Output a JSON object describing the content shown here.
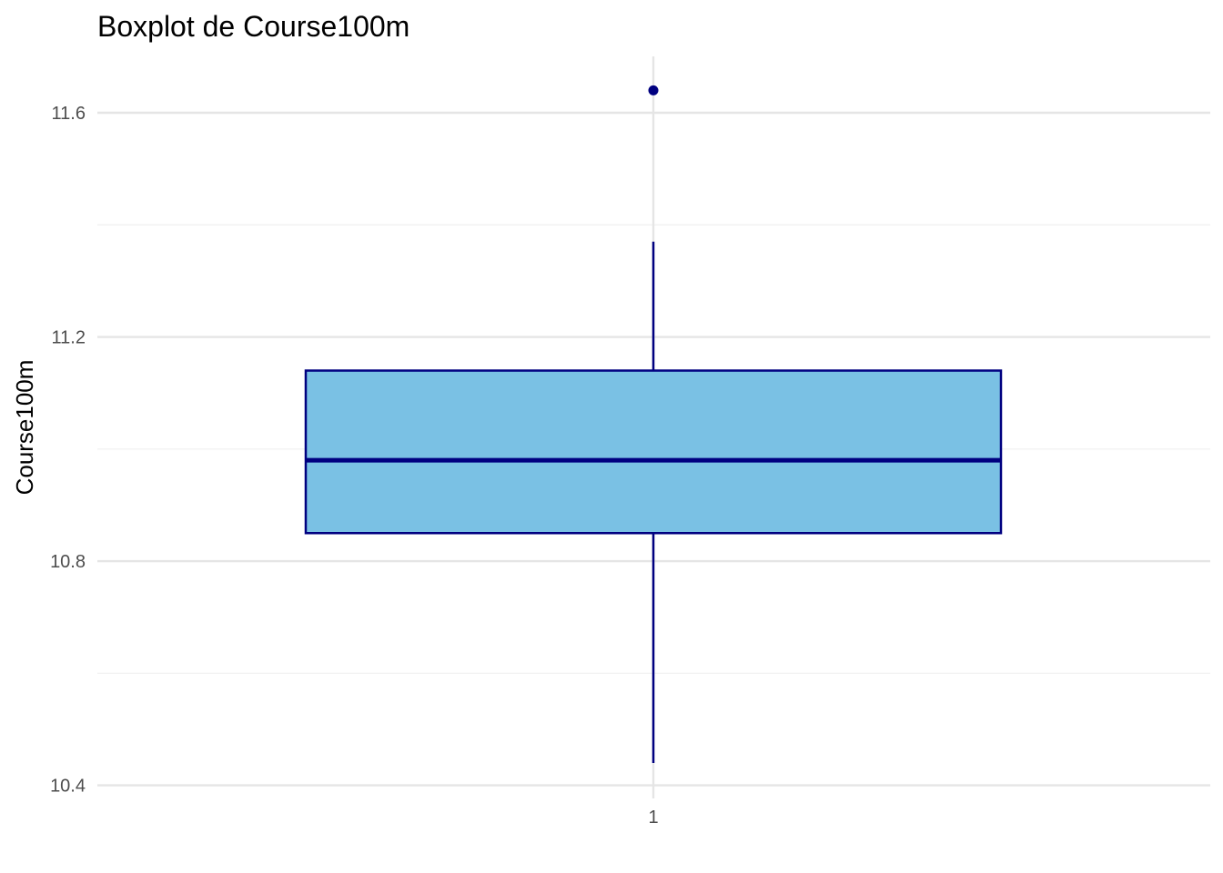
{
  "chart_data": {
    "type": "boxplot",
    "title": "Boxplot de Course100m",
    "xlabel": "",
    "ylabel": "Course100m",
    "categories": [
      "1"
    ],
    "ylim": [
      10.37,
      11.7
    ],
    "y_ticks": [
      10.4,
      10.8,
      11.2,
      11.6
    ],
    "y_tick_labels": [
      "10.4",
      "10.8",
      "11.2",
      "11.6"
    ],
    "y_minor_ticks": [
      10.6,
      11.0,
      11.4
    ],
    "grid": true,
    "box": {
      "category": "1",
      "whisker_low": 10.44,
      "q1": 10.85,
      "median": 10.98,
      "q3": 11.14,
      "whisker_high": 11.37,
      "outliers": [
        11.64
      ]
    },
    "colors": {
      "fill": "#7AC1E4",
      "stroke": "#000080",
      "grid_major": "#e5e5e5",
      "grid_minor": "#efefef"
    }
  }
}
